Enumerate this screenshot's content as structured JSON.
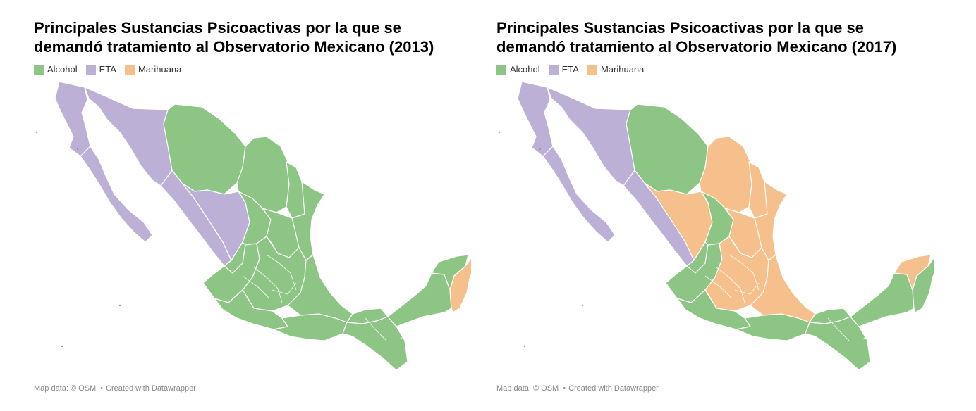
{
  "colors": {
    "alcohol": "#8dc584",
    "eta": "#bcb0d6",
    "marihuana": "#f5c08c"
  },
  "maps": [
    {
      "title": "Principales Sustancias Psicoactivas por la que se demandó tratamiento al Observatorio Mexicano (2013)",
      "legend": [
        {
          "label": "Alcohol",
          "color_key": "alcohol"
        },
        {
          "label": "ETA",
          "color_key": "eta"
        },
        {
          "label": "Marihuana",
          "color_key": "marihuana"
        }
      ],
      "footer": {
        "source": "Map data: © OSM",
        "credit": "Created with Datawrapper"
      },
      "regions": {
        "Baja California": "eta",
        "Baja California Sur": "eta",
        "Sonora": "eta",
        "Chihuahua": "alcohol",
        "Coahuila": "alcohol",
        "Nuevo León": "alcohol",
        "Tamaulipas": "alcohol",
        "Sinaloa": "eta",
        "Durango": "eta",
        "Zacatecas": "alcohol",
        "San Luis Potosí": "alcohol",
        "Nayarit": "alcohol",
        "Jalisco": "alcohol",
        "Centro": "alcohol",
        "Guerrero": "alcohol",
        "Oaxaca": "alcohol",
        "Veracruz": "alcohol",
        "Tabasco": "alcohol",
        "Chiapas": "alcohol",
        "Campeche": "alcohol",
        "Yucatán": "alcohol",
        "Quintana Roo": "marihuana"
      }
    },
    {
      "title": "Principales Sustancias Psicoactivas por la que se demandó tratamiento al Observatorio Mexicano (2017)",
      "legend": [
        {
          "label": "Alcohol",
          "color_key": "alcohol"
        },
        {
          "label": "ETA",
          "color_key": "eta"
        },
        {
          "label": "Marihuana",
          "color_key": "marihuana"
        }
      ],
      "footer": {
        "source": "Map data: © OSM",
        "credit": "Created with Datawrapper"
      },
      "regions": {
        "Baja California": "eta",
        "Baja California Sur": "eta",
        "Sonora": "eta",
        "Chihuahua": "alcohol",
        "Coahuila": "marihuana",
        "Nuevo León": "marihuana",
        "Tamaulipas": "marihuana",
        "Sinaloa": "eta",
        "Durango": "marihuana",
        "Zacatecas": "alcohol",
        "San Luis Potosí": "marihuana",
        "Nayarit": "alcohol",
        "Jalisco": "alcohol",
        "Centro": "marihuana",
        "Guerrero": "alcohol",
        "Oaxaca": "alcohol",
        "Veracruz": "marihuana",
        "Tabasco": "alcohol",
        "Chiapas": "alcohol",
        "Campeche": "alcohol",
        "Yucatán": "marihuana",
        "Quintana Roo": "alcohol"
      }
    }
  ]
}
